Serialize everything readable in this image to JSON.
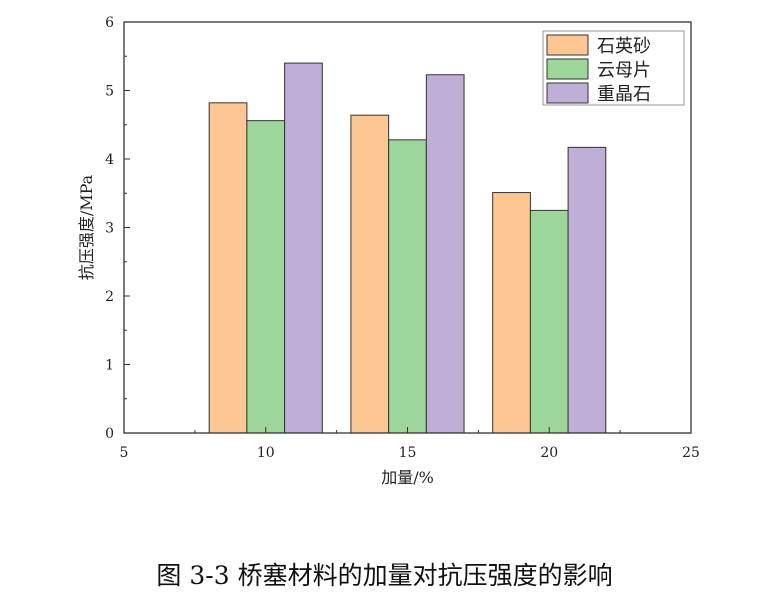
{
  "chart_data": {
    "type": "bar",
    "xlabel": "加量/%",
    "ylabel": "抗压强度/MPa",
    "xlim": [
      5,
      25
    ],
    "ylim": [
      0,
      6
    ],
    "xticks": [
      5,
      10,
      15,
      20,
      25
    ],
    "yticks": [
      0,
      1,
      2,
      3,
      4,
      5,
      6
    ],
    "categories": [
      10,
      15,
      20
    ],
    "legend_position": "top-right",
    "grid": false,
    "series": [
      {
        "name": "石英砂",
        "values": [
          4.82,
          4.64,
          3.51
        ],
        "color": "#fcc792"
      },
      {
        "name": "云母片",
        "values": [
          4.56,
          4.28,
          3.25
        ],
        "color": "#9dd69b"
      },
      {
        "name": "重晶石",
        "values": [
          5.4,
          5.23,
          4.17
        ],
        "color": "#bfaed5"
      }
    ]
  },
  "caption": "图 3-3  桥塞材料的加量对抗压强度的影响"
}
